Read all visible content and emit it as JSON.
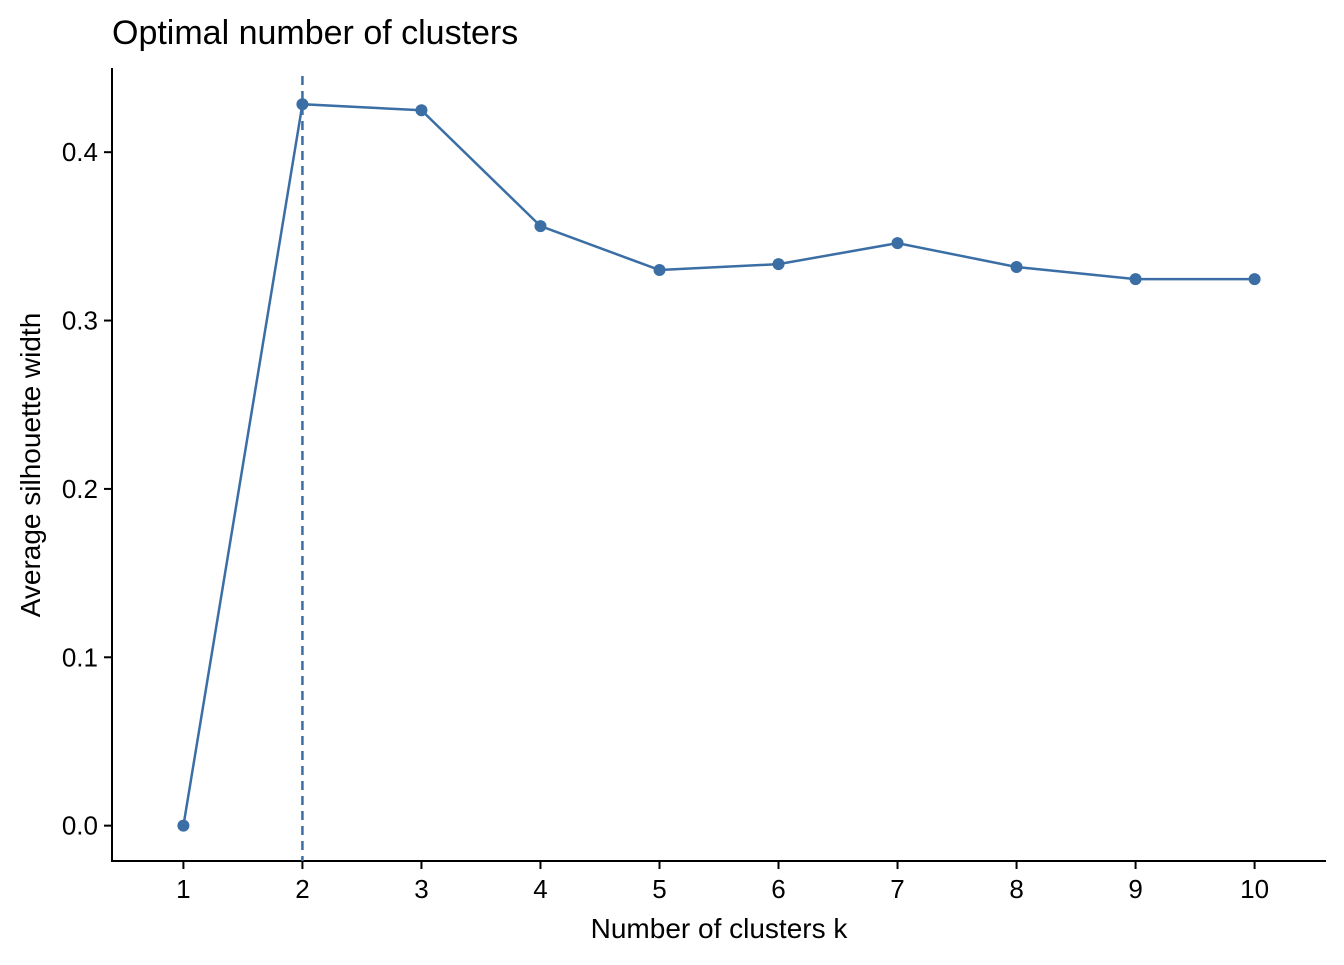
{
  "chart_data": {
    "type": "line",
    "title": "Optimal number of clusters",
    "xlabel": "Number of clusters k",
    "ylabel": "Average silhouette width",
    "x": [
      "1",
      "2",
      "3",
      "4",
      "5",
      "6",
      "7",
      "8",
      "9",
      "10"
    ],
    "values": [
      0.0,
      0.4285,
      0.4249,
      0.3561,
      0.33,
      0.3335,
      0.346,
      0.3318,
      0.3246,
      0.3246
    ],
    "yticks": [
      "0.0",
      "0.1",
      "0.2",
      "0.3",
      "0.4"
    ],
    "ytick_values": [
      0,
      0.1,
      0.2,
      0.3,
      0.4
    ],
    "xlim": [
      0.4,
      10.6
    ],
    "ylim": [
      -0.021,
      0.45
    ],
    "optimal_k": 2,
    "grid": false,
    "color": "#3a6ea5"
  }
}
